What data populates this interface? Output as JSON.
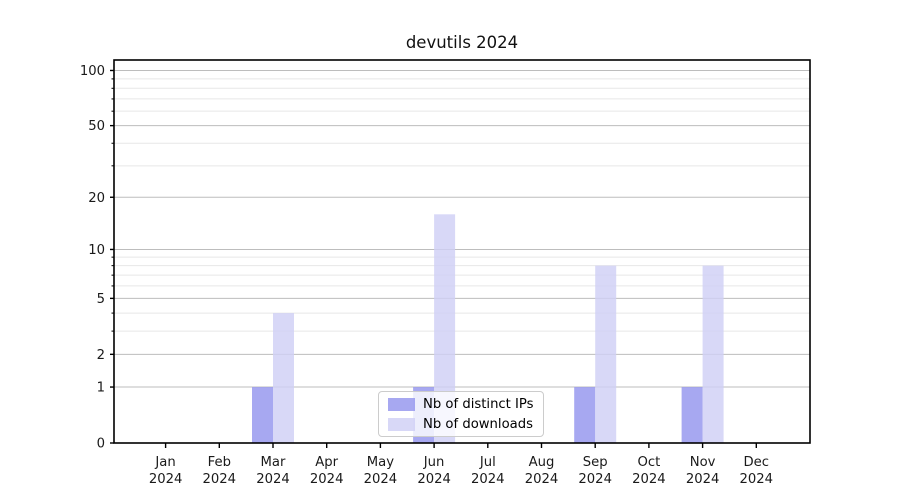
{
  "chart_data": {
    "type": "bar",
    "title": "devutils 2024",
    "categories": [
      "Jan",
      "Feb",
      "Mar",
      "Apr",
      "May",
      "Jun",
      "Jul",
      "Aug",
      "Sep",
      "Oct",
      "Nov",
      "Dec"
    ],
    "x_year": "2024",
    "series": [
      {
        "name": "Nb of distinct IPs",
        "color": "#9495ee",
        "values": [
          0,
          0,
          1,
          0,
          0,
          1,
          0,
          0,
          1,
          0,
          1,
          0
        ]
      },
      {
        "name": "Nb of downloads",
        "color": "#cfd0f5",
        "values": [
          0,
          0,
          4,
          0,
          0,
          16,
          0,
          0,
          8,
          0,
          8,
          0
        ]
      }
    ],
    "fill_alpha": 0.82,
    "yscale": "log1p",
    "ylim": [
      0,
      114
    ],
    "y_major_ticks": [
      0,
      1,
      2,
      5,
      10,
      20,
      50,
      100
    ],
    "y_minor_ticks": [
      3,
      4,
      6,
      7,
      8,
      9,
      30,
      40,
      60,
      70,
      80,
      90
    ],
    "grid": "horizontal",
    "grid_major_color": "#bdbdbd",
    "grid_minor_color": "#e7e7e7",
    "axis_color": "#000000",
    "tick_label_color": "#1a1a1a",
    "legend_position": "lower center",
    "xlabel": "",
    "ylabel": ""
  }
}
